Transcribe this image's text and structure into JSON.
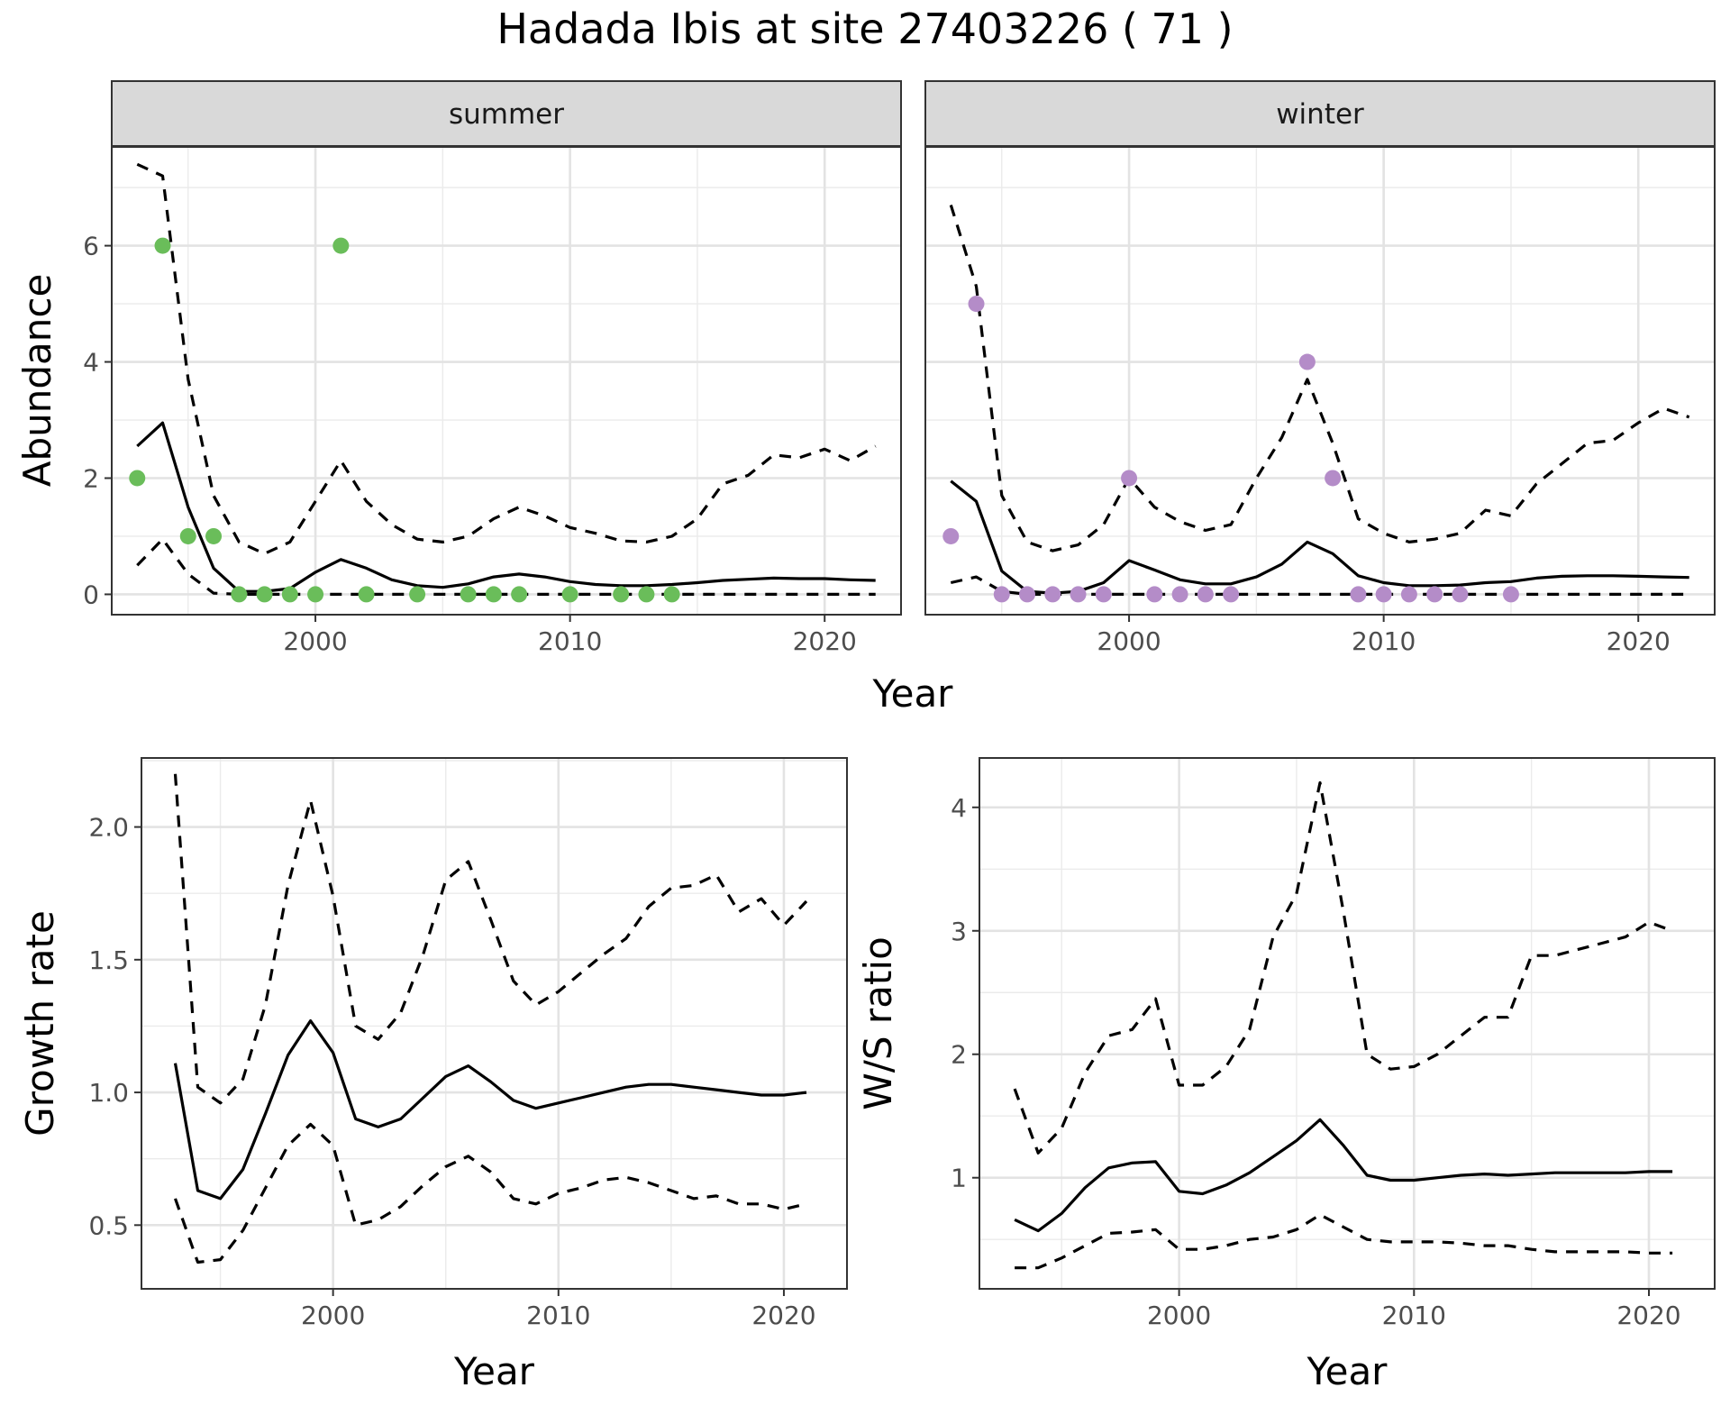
{
  "title": "Hadada Ibis at site 27403226 ( 71 )",
  "colors": {
    "summer": "#6abd5a",
    "winter": "#b48cc8",
    "line": "#000000"
  },
  "chart_data": [
    {
      "type": "line",
      "name": "abundance-summer",
      "facet": "summer",
      "xlabel": "Year",
      "ylabel": "Abundance",
      "xlim": [
        1992,
        2023
      ],
      "ylim": [
        -0.35,
        7.7
      ],
      "xticks": [
        2000,
        2010,
        2020
      ],
      "yticks": [
        0,
        2,
        4,
        6
      ],
      "series": [
        {
          "role": "estimate",
          "style": "solid",
          "x": [
            1993,
            1994,
            1995,
            1996,
            1997,
            1998,
            1999,
            2000,
            2001,
            2002,
            2003,
            2004,
            2005,
            2006,
            2007,
            2008,
            2009,
            2010,
            2011,
            2012,
            2013,
            2014,
            2015,
            2016,
            2017,
            2018,
            2019,
            2020,
            2021,
            2022
          ],
          "y": [
            2.55,
            2.95,
            1.5,
            0.45,
            0.05,
            0.05,
            0.1,
            0.38,
            0.6,
            0.45,
            0.25,
            0.15,
            0.12,
            0.18,
            0.3,
            0.35,
            0.3,
            0.22,
            0.17,
            0.15,
            0.15,
            0.17,
            0.2,
            0.24,
            0.26,
            0.28,
            0.27,
            0.27,
            0.25,
            0.24
          ]
        },
        {
          "role": "upper",
          "style": "dashed",
          "x": [
            1993,
            1994,
            1995,
            1996,
            1997,
            1998,
            1999,
            2000,
            2001,
            2002,
            2003,
            2004,
            2005,
            2006,
            2007,
            2008,
            2009,
            2010,
            2011,
            2012,
            2013,
            2014,
            2015,
            2016,
            2017,
            2018,
            2019,
            2020,
            2021,
            2022
          ],
          "y": [
            7.4,
            7.2,
            3.7,
            1.7,
            0.9,
            0.7,
            0.9,
            1.6,
            2.3,
            1.6,
            1.2,
            0.95,
            0.9,
            1.0,
            1.3,
            1.5,
            1.35,
            1.15,
            1.05,
            0.92,
            0.9,
            1.0,
            1.3,
            1.9,
            2.05,
            2.4,
            2.35,
            2.5,
            2.3,
            2.55
          ]
        },
        {
          "role": "lower",
          "style": "dashed",
          "x": [
            1993,
            1994,
            1995,
            1996,
            1997,
            1998,
            1999,
            2000,
            2001,
            2002,
            2003,
            2004,
            2005,
            2006,
            2007,
            2008,
            2009,
            2010,
            2011,
            2012,
            2013,
            2014,
            2015,
            2016,
            2017,
            2018,
            2019,
            2020,
            2021,
            2022
          ],
          "y": [
            0.5,
            0.95,
            0.35,
            0.02,
            0,
            0,
            0,
            0,
            0,
            0,
            0,
            0,
            0,
            0,
            0,
            0,
            0,
            0,
            0,
            0,
            0,
            0,
            0,
            0,
            0,
            0,
            0,
            0,
            0,
            0
          ]
        }
      ],
      "points": {
        "x": [
          1993,
          1994,
          1995,
          1996,
          1997,
          1998,
          1999,
          2000,
          2001,
          2002,
          2004,
          2006,
          2007,
          2008,
          2010,
          2012,
          2013,
          2014
        ],
        "y": [
          2,
          6,
          1,
          1,
          0,
          0,
          0,
          0,
          6,
          0,
          0,
          0,
          0,
          0,
          0,
          0,
          0,
          0
        ]
      }
    },
    {
      "type": "line",
      "name": "abundance-winter",
      "facet": "winter",
      "xlabel": "Year",
      "ylabel": "Abundance",
      "xlim": [
        1992,
        2023
      ],
      "ylim": [
        -0.35,
        7.7
      ],
      "xticks": [
        2000,
        2010,
        2020
      ],
      "yticks": [
        0,
        2,
        4,
        6
      ],
      "series": [
        {
          "role": "estimate",
          "style": "solid",
          "x": [
            1993,
            1994,
            1995,
            1996,
            1997,
            1998,
            1999,
            2000,
            2001,
            2002,
            2003,
            2004,
            2005,
            2006,
            2007,
            2008,
            2009,
            2010,
            2011,
            2012,
            2013,
            2014,
            2015,
            2016,
            2017,
            2018,
            2019,
            2020,
            2021,
            2022
          ],
          "y": [
            1.95,
            1.6,
            0.4,
            0.05,
            0.02,
            0.05,
            0.2,
            0.58,
            0.42,
            0.25,
            0.18,
            0.18,
            0.3,
            0.52,
            0.9,
            0.7,
            0.32,
            0.2,
            0.15,
            0.15,
            0.16,
            0.2,
            0.22,
            0.28,
            0.31,
            0.32,
            0.32,
            0.31,
            0.3,
            0.29
          ]
        },
        {
          "role": "upper",
          "style": "dashed",
          "x": [
            1993,
            1994,
            1995,
            1996,
            1997,
            1998,
            1999,
            2000,
            2001,
            2002,
            2003,
            2004,
            2005,
            2006,
            2007,
            2008,
            2009,
            2010,
            2011,
            2012,
            2013,
            2014,
            2015,
            2016,
            2017,
            2018,
            2019,
            2020,
            2021,
            2022
          ],
          "y": [
            6.7,
            5.3,
            1.7,
            0.9,
            0.75,
            0.85,
            1.2,
            2.0,
            1.5,
            1.25,
            1.1,
            1.2,
            2.0,
            2.7,
            3.7,
            2.6,
            1.3,
            1.05,
            0.9,
            0.95,
            1.05,
            1.45,
            1.35,
            1.9,
            2.25,
            2.6,
            2.65,
            2.95,
            3.2,
            3.05
          ]
        },
        {
          "role": "lower",
          "style": "dashed",
          "x": [
            1993,
            1994,
            1995,
            1996,
            1997,
            1998,
            1999,
            2000,
            2001,
            2002,
            2003,
            2004,
            2005,
            2006,
            2007,
            2008,
            2009,
            2010,
            2011,
            2012,
            2013,
            2014,
            2015,
            2016,
            2017,
            2018,
            2019,
            2020,
            2021,
            2022
          ],
          "y": [
            0.2,
            0.3,
            0.05,
            0,
            0,
            0,
            0,
            0,
            0,
            0,
            0,
            0,
            0,
            0,
            0,
            0,
            0,
            0,
            0,
            0,
            0,
            0,
            0,
            0,
            0,
            0,
            0,
            0,
            0,
            0
          ]
        }
      ],
      "points": {
        "x": [
          1993,
          1994,
          1995,
          1996,
          1997,
          1998,
          1999,
          2000,
          2001,
          2002,
          2003,
          2004,
          2007,
          2008,
          2009,
          2010,
          2011,
          2012,
          2013,
          2015
        ],
        "y": [
          1,
          5,
          0,
          0,
          0,
          0,
          0,
          2,
          0,
          0,
          0,
          0,
          4,
          2,
          0,
          0,
          0,
          0,
          0,
          0
        ]
      }
    },
    {
      "type": "line",
      "name": "growth-rate",
      "xlabel": "Year",
      "ylabel": "Growth rate",
      "xlim": [
        1991.5,
        2022.8
      ],
      "ylim": [
        0.26,
        2.26
      ],
      "xticks": [
        2000,
        2010,
        2020
      ],
      "yticks": [
        0.5,
        1.0,
        1.5,
        2.0
      ],
      "ytick_labels": [
        "0.5",
        "1.0",
        "1.5",
        "2.0"
      ],
      "series": [
        {
          "role": "estimate",
          "style": "solid",
          "x": [
            1993,
            1994,
            1995,
            1996,
            1997,
            1998,
            1999,
            2000,
            2001,
            2002,
            2003,
            2004,
            2005,
            2006,
            2007,
            2008,
            2009,
            2010,
            2011,
            2012,
            2013,
            2014,
            2015,
            2016,
            2017,
            2018,
            2019,
            2020,
            2021
          ],
          "y": [
            1.11,
            0.63,
            0.6,
            0.71,
            0.92,
            1.14,
            1.27,
            1.15,
            0.9,
            0.87,
            0.9,
            0.98,
            1.06,
            1.1,
            1.04,
            0.97,
            0.94,
            0.96,
            0.98,
            1.0,
            1.02,
            1.03,
            1.03,
            1.02,
            1.01,
            1.0,
            0.99,
            0.99,
            1.0
          ]
        },
        {
          "role": "upper",
          "style": "dashed",
          "x": [
            1993,
            1994,
            1995,
            1996,
            1997,
            1998,
            1999,
            2000,
            2001,
            2002,
            2003,
            2004,
            2005,
            2006,
            2007,
            2008,
            2009,
            2010,
            2011,
            2012,
            2013,
            2014,
            2015,
            2016,
            2017,
            2018,
            2019,
            2020,
            2021
          ],
          "y": [
            2.2,
            1.02,
            0.96,
            1.05,
            1.33,
            1.78,
            2.1,
            1.74,
            1.25,
            1.2,
            1.3,
            1.52,
            1.8,
            1.87,
            1.65,
            1.42,
            1.33,
            1.38,
            1.45,
            1.52,
            1.58,
            1.7,
            1.77,
            1.78,
            1.82,
            1.68,
            1.73,
            1.63,
            1.72
          ]
        },
        {
          "role": "lower",
          "style": "dashed",
          "x": [
            1993,
            1994,
            1995,
            1996,
            1997,
            1998,
            1999,
            2000,
            2001,
            2002,
            2003,
            2004,
            2005,
            2006,
            2007,
            2008,
            2009,
            2010,
            2011,
            2012,
            2013,
            2014,
            2015,
            2016,
            2017,
            2018,
            2019,
            2020,
            2021
          ],
          "y": [
            0.6,
            0.36,
            0.37,
            0.48,
            0.64,
            0.8,
            0.88,
            0.8,
            0.5,
            0.52,
            0.57,
            0.65,
            0.72,
            0.76,
            0.7,
            0.6,
            0.58,
            0.62,
            0.64,
            0.67,
            0.68,
            0.66,
            0.63,
            0.6,
            0.61,
            0.58,
            0.58,
            0.56,
            0.58
          ]
        }
      ]
    },
    {
      "type": "line",
      "name": "ws-ratio",
      "xlabel": "Year",
      "ylabel": "W/S ratio",
      "xlim": [
        1991.5,
        2022.8
      ],
      "ylim": [
        0.1,
        4.4
      ],
      "xticks": [
        2000,
        2010,
        2020
      ],
      "yticks": [
        1,
        2,
        3,
        4
      ],
      "series": [
        {
          "role": "estimate",
          "style": "solid",
          "x": [
            1993,
            1994,
            1995,
            1996,
            1997,
            1998,
            1999,
            2000,
            2001,
            2002,
            2003,
            2004,
            2005,
            2006,
            2007,
            2008,
            2009,
            2010,
            2011,
            2012,
            2013,
            2014,
            2015,
            2016,
            2017,
            2018,
            2019,
            2020,
            2021
          ],
          "y": [
            0.66,
            0.57,
            0.71,
            0.92,
            1.08,
            1.12,
            1.13,
            0.89,
            0.87,
            0.94,
            1.04,
            1.17,
            1.3,
            1.47,
            1.26,
            1.02,
            0.98,
            0.98,
            1.0,
            1.02,
            1.03,
            1.02,
            1.03,
            1.04,
            1.04,
            1.04,
            1.04,
            1.05,
            1.05
          ]
        },
        {
          "role": "upper",
          "style": "dashed",
          "x": [
            1993,
            1994,
            1995,
            1996,
            1997,
            1998,
            1999,
            2000,
            2001,
            2002,
            2003,
            2004,
            2005,
            2006,
            2007,
            2008,
            2009,
            2010,
            2011,
            2012,
            2013,
            2014,
            2015,
            2016,
            2017,
            2018,
            2019,
            2020,
            2021
          ],
          "y": [
            1.72,
            1.2,
            1.4,
            1.85,
            2.15,
            2.2,
            2.45,
            1.75,
            1.75,
            1.9,
            2.2,
            2.95,
            3.3,
            4.2,
            3.15,
            2.0,
            1.88,
            1.9,
            2.0,
            2.15,
            2.3,
            2.3,
            2.8,
            2.8,
            2.85,
            2.9,
            2.95,
            3.07,
            3.0
          ]
        },
        {
          "role": "lower",
          "style": "dashed",
          "x": [
            1993,
            1994,
            1995,
            1996,
            1997,
            1998,
            1999,
            2000,
            2001,
            2002,
            2003,
            2004,
            2005,
            2006,
            2007,
            2008,
            2009,
            2010,
            2011,
            2012,
            2013,
            2014,
            2015,
            2016,
            2017,
            2018,
            2019,
            2020,
            2021
          ],
          "y": [
            0.27,
            0.27,
            0.35,
            0.45,
            0.55,
            0.56,
            0.58,
            0.42,
            0.42,
            0.45,
            0.5,
            0.52,
            0.58,
            0.7,
            0.6,
            0.5,
            0.48,
            0.48,
            0.48,
            0.47,
            0.45,
            0.45,
            0.42,
            0.4,
            0.4,
            0.4,
            0.4,
            0.39,
            0.39
          ]
        }
      ]
    }
  ]
}
